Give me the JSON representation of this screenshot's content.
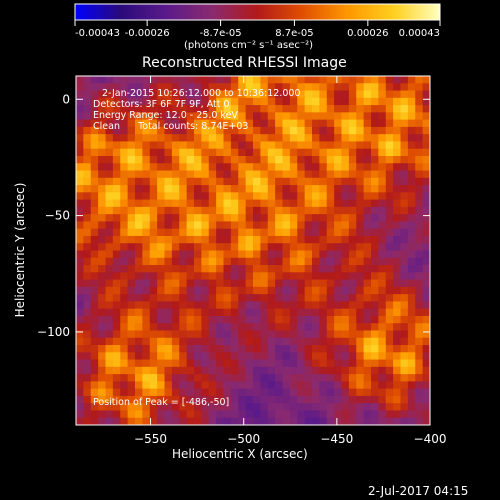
{
  "colorbar": {
    "ticks": [
      "-0.00043",
      "-0.00026",
      "-8.7e-05",
      "8.7e-05",
      "0.00026",
      "0.00043"
    ],
    "tick_values": [
      -0.00043,
      -0.00026,
      -8.7e-05,
      8.7e-05,
      0.00026,
      0.00043
    ],
    "range": [
      -0.00043,
      0.00043
    ],
    "units_label": "(photons cm⁻² s⁻¹ asec⁻²)",
    "colors": [
      "#0000ff",
      "#2a0a7a",
      "#5a1a8a",
      "#8a2a70",
      "#b21a1a",
      "#e05000",
      "#ff9900",
      "#ffd020",
      "#ffffc0"
    ]
  },
  "chart_data": {
    "type": "heatmap",
    "title": "Reconstructed RHESSI Image",
    "xlabel": "Heliocentric X (arcsec)",
    "ylabel": "Heliocentric Y (arcsec)",
    "xlim": [
      -590,
      -400
    ],
    "ylim": [
      -140,
      10
    ],
    "x_ticks": [
      -550,
      -500,
      -450,
      -400
    ],
    "y_ticks": [
      0,
      -50,
      -100
    ],
    "x_tick_labels": [
      "−550",
      "−500",
      "−450",
      "−400"
    ],
    "y_tick_labels": [
      "0",
      "−50",
      "−100"
    ],
    "peak": [
      -486,
      -50
    ],
    "annotations": [
      "2-Jan-2015 10:26:12.000 to 10:36:12.000",
      "Detectors: 3F 6F 7F 9F, Att 0",
      "Energy Range: 12.0 - 25.0 keV",
      "Clean      Total counts: 8.74E+03",
      "Position of Peak = [-486,-50]"
    ]
  },
  "footer": {
    "date": "2-Jul-2017 04:15"
  }
}
